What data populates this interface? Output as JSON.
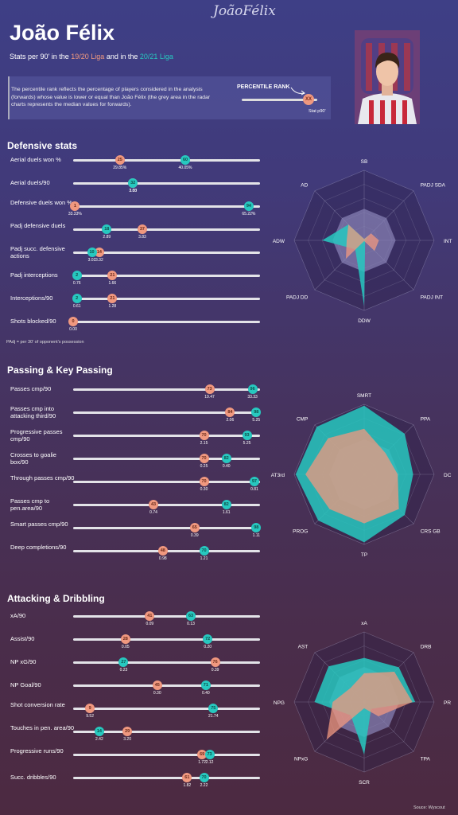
{
  "header": {
    "signature": "JoãoFélix",
    "title": "João Félix",
    "subtitle_parts": [
      "Stats per 90' in the ",
      "19/20 Liga",
      " and in the ",
      "20/21 Liga"
    ],
    "info": "The percentile rank reflects the percentage of players considered in the analysis (forwards) whose value is lower or equal than João Félix (the grey area in the radar charts represents the median values for forwards).",
    "legend_title": "PERCENTILE RANK",
    "legend_value": "XX",
    "legend_sub": "Stat p90'"
  },
  "colors": {
    "season1": "#f0987f",
    "season2": "#27c8bf",
    "median": "#8a84b8"
  },
  "seasons": [
    "19/20 Liga",
    "20/21 Liga"
  ],
  "chart_data": [
    {
      "type": "scatter",
      "section": "Defensive stats",
      "seasons": [
        "19/20 Liga",
        "20/21 Liga"
      ],
      "stats": [
        {
          "label": "Aerial duels won %",
          "r1": 25,
          "r2": 60,
          "v1": "29.85%",
          "v2": "40.05%"
        },
        {
          "label": "Aerial duels/90",
          "r1": 32,
          "r2": 32,
          "v1": "3.03",
          "v2": "3.30"
        },
        {
          "label": "Defensive duels won %",
          "r1": 1,
          "r2": 94,
          "v1": "33.33%",
          "v2": "65.22%"
        },
        {
          "label": "Padj defensive duels",
          "r1": 37,
          "r2": 18,
          "v1": "3.83",
          "v2": "2.89"
        },
        {
          "label": "Padj succ. defensive actions",
          "r1": 14,
          "r2": 10,
          "v1": "3.32",
          "v2": "3.02"
        },
        {
          "label": "Padj interceptions",
          "r1": 21,
          "r2": 2,
          "v1": "1.66",
          "v2": "0.76"
        },
        {
          "label": "Interceptions/90",
          "r1": 21,
          "r2": 2,
          "v1": "1.28",
          "v2": "0.61"
        },
        {
          "label": "Shots blocked/90",
          "r1": 0,
          "r2": null,
          "v1": "0.00",
          "v2": ""
        }
      ],
      "radar": {
        "axes": [
          "SB",
          "PADJ SDA",
          "INT",
          "PADJ INT",
          "DDW",
          "PADJ DD",
          "ADW",
          "AD"
        ],
        "median": [
          45,
          45,
          45,
          45,
          45,
          45,
          45,
          45
        ],
        "s1": [
          2,
          14,
          21,
          21,
          1,
          37,
          25,
          32
        ],
        "s2": [
          2,
          10,
          2,
          2,
          94,
          18,
          60,
          32
        ]
      },
      "note": "PAdj = per 30' of opponent's possession"
    },
    {
      "type": "scatter",
      "section": "Passing & Key Passing",
      "seasons": [
        "19/20 Liga",
        "20/21 Liga"
      ],
      "stats": [
        {
          "label": "Passes cmp/90",
          "r1": 73,
          "r2": 96,
          "v1": "19.47",
          "v2": "33.33"
        },
        {
          "label": "Passes cmp into attacking third/90",
          "r1": 84,
          "r2": 98,
          "v1": "2.06",
          "v2": "5.25"
        },
        {
          "label": "Progressive passes cmp/90",
          "r1": 70,
          "r2": 93,
          "v1": "2.15",
          "v2": "5.25"
        },
        {
          "label": "Crosses to goalie box/90",
          "r1": 70,
          "r2": 82,
          "v1": "0.25",
          "v2": "0.40"
        },
        {
          "label": "Through passes cmp/90",
          "r1": 70,
          "r2": 97,
          "v1": "0.30",
          "v2": "0.81"
        },
        {
          "label": "Passes cmp to pen.area/90",
          "r1": 43,
          "r2": 82,
          "v1": "0.74",
          "v2": "1.61"
        },
        {
          "label": "Smart passes cmp/90",
          "r1": 65,
          "r2": 98,
          "v1": "0.39",
          "v2": "1.11"
        },
        {
          "label": "Deep completions/90",
          "r1": 48,
          "r2": 70,
          "v1": "0.98",
          "v2": "1.21"
        }
      ],
      "radar": {
        "axes": [
          "SMRT",
          "PPA",
          "DC",
          "CRS GB",
          "TP",
          "PROG",
          "AT3rd",
          "CMP"
        ],
        "median": [
          50,
          50,
          50,
          50,
          50,
          50,
          50,
          50
        ],
        "s1": [
          65,
          43,
          48,
          70,
          70,
          70,
          84,
          73
        ],
        "s2": [
          98,
          82,
          70,
          82,
          97,
          93,
          98,
          96
        ]
      }
    },
    {
      "type": "scatter",
      "section": "Attacking & Dribbling",
      "seasons": [
        "19/20 Liga",
        "20/21 Liga"
      ],
      "stats": [
        {
          "label": "xA/90",
          "r1": 41,
          "r2": 63,
          "v1": "0.09",
          "v2": "0.13"
        },
        {
          "label": "Assist/90",
          "r1": 28,
          "r2": 72,
          "v1": "0.05",
          "v2": "0.20"
        },
        {
          "label": "NP xG/90",
          "r1": 76,
          "r2": 27,
          "v1": "0.39",
          "v2": "0.23"
        },
        {
          "label": "NP Goal/90",
          "r1": 45,
          "r2": 71,
          "v1": "0.30",
          "v2": "0.40"
        },
        {
          "label": "Shot conversion rate",
          "r1": 9,
          "r2": 75,
          "v1": "9.52",
          "v2": "21.74"
        },
        {
          "label": "Touches in pen. area/90",
          "r1": 29,
          "r2": 14,
          "v1": "3.20",
          "v2": "2.42"
        },
        {
          "label": "Progressive runs/90",
          "r1": 69,
          "r2": 73,
          "v1": "1.72",
          "v2": "2.12"
        },
        {
          "label": "Succ. dribbles/90",
          "r1": 61,
          "r2": 70,
          "v1": "1.82",
          "v2": "2.22"
        }
      ],
      "radar": {
        "axes": [
          "xA",
          "DRB",
          "PR",
          "TPA",
          "SCR",
          "NPxG",
          "NPG",
          "AST"
        ],
        "median": [
          50,
          50,
          50,
          50,
          50,
          50,
          50,
          50
        ],
        "s1": [
          41,
          61,
          69,
          29,
          9,
          76,
          45,
          28
        ],
        "s2": [
          63,
          70,
          73,
          14,
          75,
          27,
          71,
          72
        ]
      }
    }
  ],
  "source": "Souce: Wyscout"
}
